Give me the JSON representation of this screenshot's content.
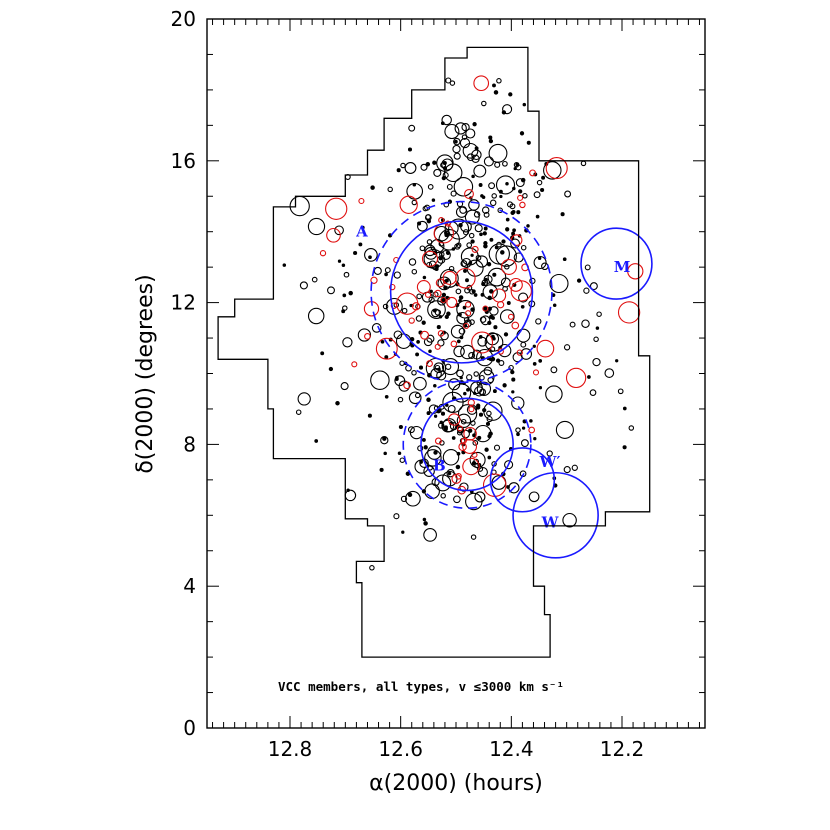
{
  "chart_data": {
    "type": "scatter",
    "xlabel": "α(2000) (hours)",
    "ylabel": "δ(2000) (degrees)",
    "xlim": [
      12.95,
      12.05
    ],
    "ylim": [
      0,
      20
    ],
    "x_reversed": true,
    "xticks": [
      "12.8",
      "12.6",
      "12.4",
      "12.2"
    ],
    "xtick_values": [
      12.8,
      12.6,
      12.4,
      12.2
    ],
    "yticks": [
      "0",
      "4",
      "8",
      "12",
      "16",
      "20"
    ],
    "ytick_values": [
      0,
      4,
      8,
      12,
      16,
      20
    ],
    "annotation": "VCC members, all types, v ≤3000 km s⁻¹",
    "survey_boundary": [
      [
        12.33,
        2.0
      ],
      [
        12.33,
        3.2
      ],
      [
        12.34,
        3.2
      ],
      [
        12.34,
        4.0
      ],
      [
        12.36,
        4.0
      ],
      [
        12.36,
        5.7
      ],
      [
        12.23,
        5.7
      ],
      [
        12.23,
        6.1
      ],
      [
        12.15,
        6.1
      ],
      [
        12.15,
        10.5
      ],
      [
        12.17,
        10.5
      ],
      [
        12.17,
        16.0
      ],
      [
        12.35,
        16.0
      ],
      [
        12.35,
        17.4
      ],
      [
        12.37,
        17.4
      ],
      [
        12.37,
        19.2
      ],
      [
        12.48,
        19.2
      ],
      [
        12.48,
        18.9
      ],
      [
        12.52,
        18.9
      ],
      [
        12.52,
        18.0
      ],
      [
        12.58,
        18.0
      ],
      [
        12.58,
        17.2
      ],
      [
        12.63,
        17.2
      ],
      [
        12.63,
        16.3
      ],
      [
        12.66,
        16.3
      ],
      [
        12.66,
        15.6
      ],
      [
        12.7,
        15.6
      ],
      [
        12.7,
        15.0
      ],
      [
        12.79,
        15.0
      ],
      [
        12.79,
        14.7
      ],
      [
        12.83,
        14.7
      ],
      [
        12.83,
        12.1
      ],
      [
        12.9,
        12.1
      ],
      [
        12.9,
        11.6
      ],
      [
        12.93,
        11.6
      ],
      [
        12.93,
        10.4
      ],
      [
        12.84,
        10.4
      ],
      [
        12.84,
        9.0
      ],
      [
        12.83,
        9.0
      ],
      [
        12.83,
        7.6
      ],
      [
        12.7,
        7.6
      ],
      [
        12.7,
        5.9
      ],
      [
        12.66,
        5.9
      ],
      [
        12.66,
        5.7
      ],
      [
        12.63,
        5.7
      ],
      [
        12.63,
        4.7
      ],
      [
        12.68,
        4.7
      ],
      [
        12.68,
        4.1
      ],
      [
        12.67,
        4.1
      ],
      [
        12.67,
        2.0
      ],
      [
        12.33,
        2.0
      ]
    ],
    "regions": [
      {
        "label": "A",
        "ra": 12.49,
        "dec": 12.3,
        "radius_deg": 2.0,
        "dashed_radius_deg": 2.55,
        "label_ra": 12.67,
        "label_dec": 14.0
      },
      {
        "label": "B",
        "ra": 12.48,
        "dec": 8.0,
        "radius_deg": 1.3,
        "dashed_radius_deg": 1.8,
        "label_ra": 12.53,
        "label_dec": 7.4
      },
      {
        "label": "M",
        "ra": 12.21,
        "dec": 13.1,
        "radius_deg": 1.0,
        "label_ra": 12.2,
        "label_dec": 13.0
      },
      {
        "label": "W′",
        "ra": 12.38,
        "dec": 7.0,
        "radius_deg": 0.9,
        "label_ra": 12.33,
        "label_dec": 7.5
      },
      {
        "label": "W",
        "ra": 12.32,
        "dec": 6.0,
        "radius_deg": 1.2,
        "label_ra": 12.33,
        "label_dec": 5.8
      }
    ],
    "point_groups": [
      {
        "name": "",
        "color": "#000000",
        "ra": 12.5,
        "dec": 12.3,
        "spread_ra": 0.06,
        "spread_dec": 1.5,
        "count": 170
      },
      {
        "name": "",
        "color": "#000000",
        "ra": 12.48,
        "dec": 8.1,
        "spread_ra": 0.05,
        "spread_dec": 1.0,
        "count": 80
      },
      {
        "name": "",
        "color": "#000000",
        "ra": 12.5,
        "dec": 11.0,
        "spread_ra": 0.14,
        "spread_dec": 3.0,
        "count": 260
      },
      {
        "name": "",
        "color": "#000000",
        "ra": 12.45,
        "dec": 16.0,
        "spread_ra": 0.06,
        "spread_dec": 1.2,
        "count": 70
      },
      {
        "name": "",
        "color": "#e01010",
        "ra": 12.5,
        "dec": 12.4,
        "spread_ra": 0.07,
        "spread_dec": 1.4,
        "count": 38
      },
      {
        "name": "",
        "color": "#e01010",
        "ra": 12.48,
        "dec": 8.0,
        "spread_ra": 0.05,
        "spread_dec": 0.8,
        "count": 16
      },
      {
        "name": "",
        "color": "#e01010",
        "ra": 12.5,
        "dec": 11.5,
        "spread_ra": 0.15,
        "spread_dec": 2.8,
        "count": 24
      }
    ],
    "grid": false,
    "legend": "none"
  }
}
